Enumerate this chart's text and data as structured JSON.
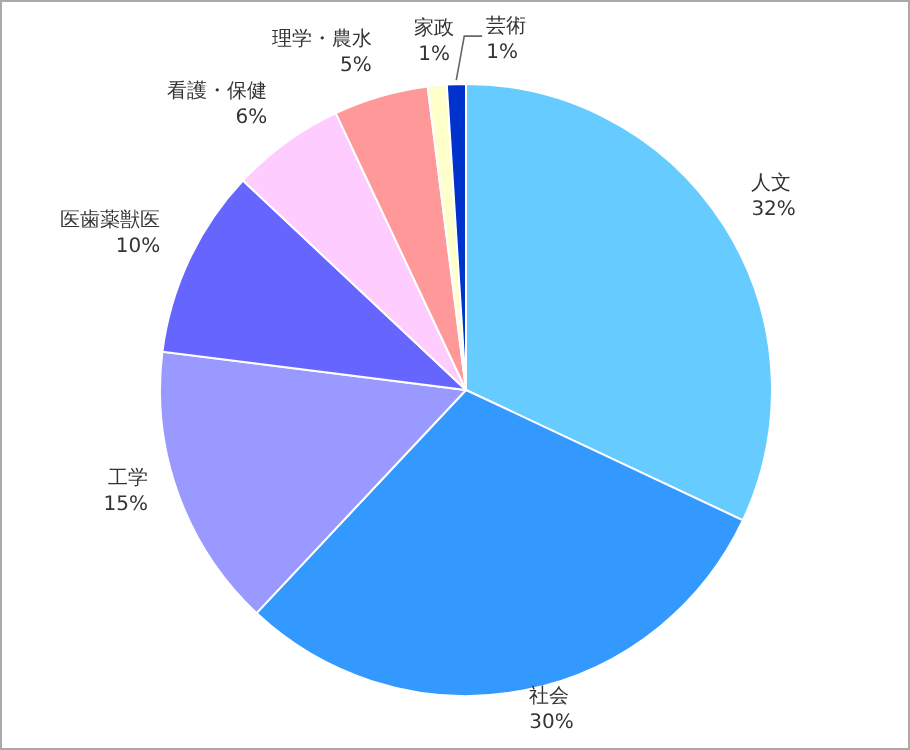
{
  "chart_data": {
    "type": "pie",
    "categories": [
      "人文",
      "社会",
      "工学",
      "医歯薬獣医",
      "看護・保健",
      "理学・農水",
      "家政",
      "芸術"
    ],
    "values": [
      32,
      30,
      15,
      10,
      6,
      5,
      1,
      1
    ],
    "value_labels": [
      "32%",
      "30%",
      "15%",
      "10%",
      "6%",
      "5%",
      "1%",
      "1%"
    ],
    "colors": [
      "#66ccff",
      "#3399ff",
      "#9999ff",
      "#6666ff",
      "#ffccff",
      "#ff9999",
      "#ffffcc",
      "#0033cc"
    ],
    "legend": false
  }
}
